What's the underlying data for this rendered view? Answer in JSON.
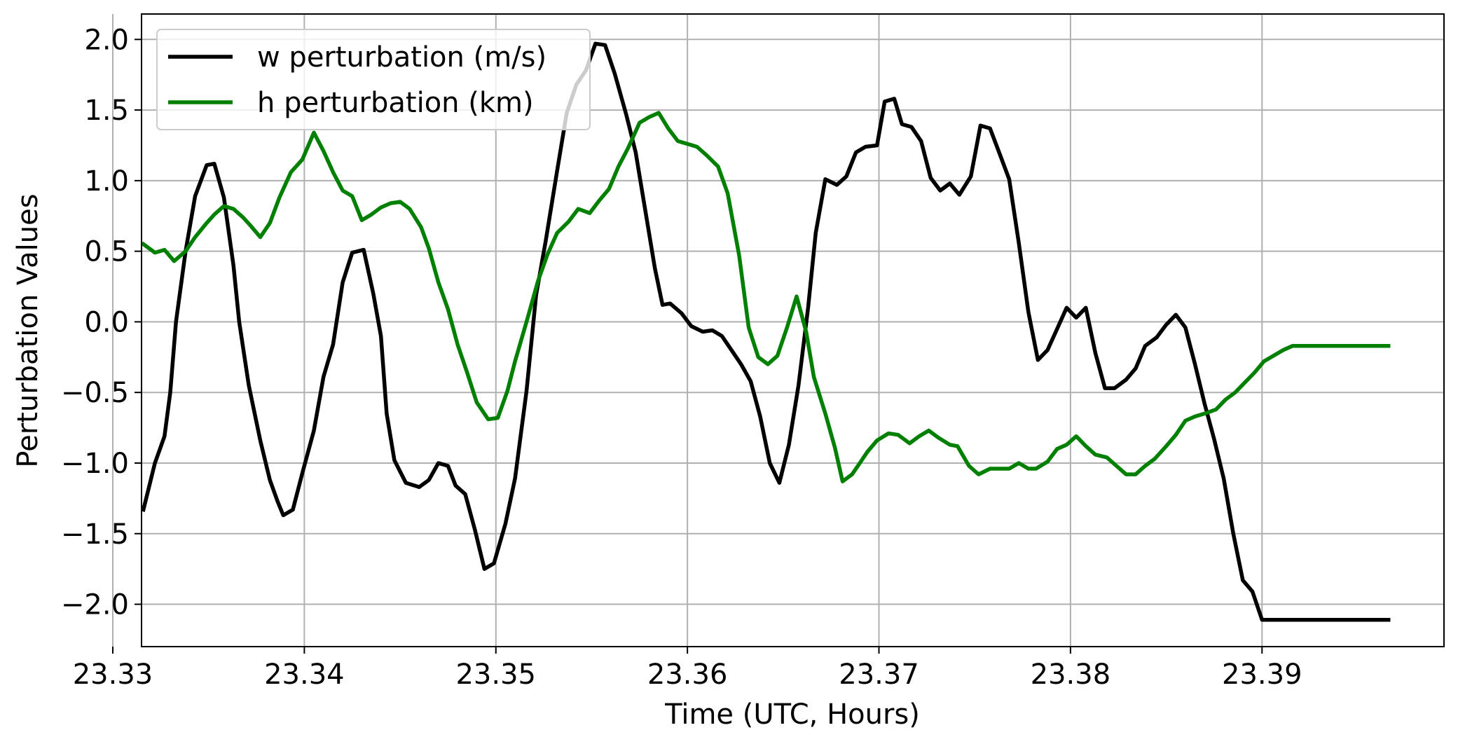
{
  "chart_data": {
    "type": "line",
    "title": "",
    "xlabel": "Time (UTC, Hours)",
    "ylabel": "Perturbation Values",
    "xlim": [
      23.3315,
      23.3995
    ],
    "ylim": [
      -2.3,
      2.18
    ],
    "grid": true,
    "legend_position": "top-left",
    "x_ticks": [
      23.33,
      23.34,
      23.35,
      23.36,
      23.37,
      23.38,
      23.39
    ],
    "x_tick_labels": [
      "23.33",
      "23.34",
      "23.35",
      "23.36",
      "23.37",
      "23.38",
      "23.39"
    ],
    "y_ticks": [
      2.0,
      1.5,
      1.0,
      0.5,
      0.0,
      -0.5,
      -1.0,
      -1.5,
      -2.0
    ],
    "y_tick_labels": [
      "2.0",
      "1.5",
      "1.0",
      "0.5",
      "0.0",
      "−0.5",
      "−1.0",
      "−1.5",
      "−2.0"
    ],
    "series": [
      {
        "name": "w perturbation (m/s)",
        "color": "#000000",
        "x": [
          23.3316,
          23.3322,
          23.3327,
          23.333,
          23.3333,
          23.3338,
          23.3343,
          23.3349,
          23.3353,
          23.3358,
          23.3363,
          23.3366,
          23.3371,
          23.3377,
          23.3382,
          23.3386,
          23.3389,
          23.3394,
          23.3399,
          23.3405,
          23.341,
          23.3415,
          23.342,
          23.3425,
          23.3431,
          23.3436,
          23.344,
          23.3443,
          23.3447,
          23.3453,
          23.346,
          23.3465,
          23.347,
          23.3475,
          23.3479,
          23.3484,
          23.3489,
          23.3494,
          23.3499,
          23.3505,
          23.351,
          23.3516,
          23.3521,
          23.3526,
          23.3532,
          23.3537,
          23.3542,
          23.3547,
          23.3552,
          23.3557,
          23.3562,
          23.3568,
          23.3573,
          23.3578,
          23.3583,
          23.3587,
          23.3591,
          23.3597,
          23.3602,
          23.3608,
          23.3613,
          23.3618,
          23.3623,
          23.3628,
          23.3633,
          23.3638,
          23.3643,
          23.3648,
          23.3653,
          23.3658,
          23.3663,
          23.3667,
          23.3672,
          23.3678,
          23.3683,
          23.3688,
          23.3693,
          23.3699,
          23.3703,
          23.3708,
          23.3712,
          23.3717,
          23.3722,
          23.3727,
          23.3732,
          23.3737,
          23.3742,
          23.3748,
          23.3753,
          23.3758,
          23.3763,
          23.3768,
          23.3773,
          23.3778,
          23.3783,
          23.3788,
          23.3793,
          23.3798,
          23.3803,
          23.3808,
          23.3813,
          23.3818,
          23.3823,
          23.3829,
          23.3834,
          23.3839,
          23.3845,
          23.385,
          23.3855,
          23.386,
          23.3865,
          23.387,
          23.3875,
          23.388,
          23.3885,
          23.389,
          23.3895,
          23.39,
          23.3905,
          23.3911,
          23.3916,
          23.3921,
          23.3926,
          23.3931,
          23.3936,
          23.3941,
          23.3946,
          23.3951,
          23.3956,
          23.3961,
          23.3966
        ],
        "y": [
          -1.33,
          -1.0,
          -0.81,
          -0.5,
          0.0,
          0.5,
          0.89,
          1.11,
          1.12,
          0.88,
          0.4,
          0.0,
          -0.45,
          -0.84,
          -1.12,
          -1.27,
          -1.37,
          -1.33,
          -1.07,
          -0.77,
          -0.39,
          -0.16,
          0.28,
          0.49,
          0.51,
          0.2,
          -0.1,
          -0.65,
          -0.98,
          -1.14,
          -1.17,
          -1.12,
          -1.0,
          -1.02,
          -1.16,
          -1.22,
          -1.47,
          -1.75,
          -1.71,
          -1.43,
          -1.11,
          -0.49,
          0.19,
          0.57,
          1.07,
          1.48,
          1.68,
          1.78,
          1.97,
          1.96,
          1.76,
          1.47,
          1.2,
          0.79,
          0.38,
          0.12,
          0.13,
          0.06,
          -0.03,
          -0.07,
          -0.06,
          -0.1,
          -0.2,
          -0.3,
          -0.42,
          -0.67,
          -1.0,
          -1.14,
          -0.87,
          -0.45,
          0.1,
          0.63,
          1.01,
          0.97,
          1.03,
          1.2,
          1.24,
          1.25,
          1.56,
          1.58,
          1.4,
          1.38,
          1.28,
          1.02,
          0.93,
          0.98,
          0.9,
          1.03,
          1.39,
          1.37,
          1.19,
          1.01,
          0.56,
          0.07,
          -0.27,
          -0.2,
          -0.05,
          0.1,
          0.03,
          0.1,
          -0.22,
          -0.47,
          -0.47,
          -0.41,
          -0.33,
          -0.17,
          -0.11,
          -0.02,
          0.05,
          -0.04,
          -0.3,
          -0.58,
          -0.83,
          -1.11,
          -1.5,
          -1.83,
          -1.91,
          -2.11,
          -2.11,
          -2.11,
          -2.11,
          -2.11,
          -2.11,
          -2.11,
          -2.11,
          -2.11,
          -2.11,
          -2.11,
          -2.11,
          -2.11,
          -2.11
        ]
      },
      {
        "name": "h perturbation (km)",
        "color": "#008000",
        "x": [
          23.3316,
          23.3322,
          23.3327,
          23.3332,
          23.3338,
          23.3343,
          23.3349,
          23.3353,
          23.3358,
          23.3363,
          23.3368,
          23.3372,
          23.3377,
          23.3382,
          23.3387,
          23.3393,
          23.3399,
          23.3405,
          23.341,
          23.3415,
          23.342,
          23.3425,
          23.343,
          23.3435,
          23.344,
          23.3445,
          23.345,
          23.3455,
          23.3461,
          23.3465,
          23.347,
          23.3475,
          23.348,
          23.3485,
          23.349,
          23.3496,
          23.3501,
          23.3506,
          23.351,
          23.3516,
          23.3522,
          23.3527,
          23.3532,
          23.3538,
          23.3543,
          23.3549,
          23.3554,
          23.3559,
          23.3564,
          23.3569,
          23.3575,
          23.358,
          23.3585,
          23.359,
          23.3595,
          23.36,
          23.3605,
          23.361,
          23.3616,
          23.3621,
          23.3627,
          23.3632,
          23.3637,
          23.3642,
          23.3647,
          23.3652,
          23.3657,
          23.3662,
          23.3666,
          23.3672,
          23.3677,
          23.3681,
          23.3686,
          23.369,
          23.3694,
          23.3699,
          23.3705,
          23.371,
          23.3716,
          23.3721,
          23.3726,
          23.3731,
          23.3737,
          23.3741,
          23.3747,
          23.3752,
          23.3758,
          23.3763,
          23.3768,
          23.3773,
          23.3778,
          23.3782,
          23.3788,
          23.3793,
          23.3798,
          23.3803,
          23.3808,
          23.3813,
          23.3819,
          23.3824,
          23.3829,
          23.3834,
          23.3839,
          23.3844,
          23.385,
          23.3855,
          23.386,
          23.3865,
          23.387,
          23.3876,
          23.3881,
          23.3886,
          23.3891,
          23.3896,
          23.3901,
          23.3906,
          23.3911,
          23.3916,
          23.3922,
          23.3927,
          23.3932,
          23.3937,
          23.3942,
          23.3947,
          23.3952,
          23.3957,
          23.3962,
          23.3966
        ],
        "y": [
          0.55,
          0.49,
          0.51,
          0.43,
          0.5,
          0.6,
          0.7,
          0.76,
          0.82,
          0.8,
          0.74,
          0.68,
          0.6,
          0.7,
          0.88,
          1.06,
          1.15,
          1.34,
          1.21,
          1.06,
          0.93,
          0.89,
          0.72,
          0.76,
          0.81,
          0.84,
          0.85,
          0.8,
          0.67,
          0.52,
          0.28,
          0.09,
          -0.16,
          -0.36,
          -0.57,
          -0.69,
          -0.68,
          -0.49,
          -0.28,
          0.0,
          0.29,
          0.48,
          0.63,
          0.71,
          0.8,
          0.77,
          0.86,
          0.94,
          1.1,
          1.23,
          1.41,
          1.45,
          1.48,
          1.37,
          1.28,
          1.26,
          1.24,
          1.18,
          1.1,
          0.91,
          0.47,
          -0.04,
          -0.25,
          -0.3,
          -0.24,
          -0.04,
          0.18,
          -0.07,
          -0.39,
          -0.65,
          -0.89,
          -1.13,
          -1.08,
          -1.0,
          -0.92,
          -0.84,
          -0.79,
          -0.8,
          -0.86,
          -0.81,
          -0.77,
          -0.82,
          -0.87,
          -0.88,
          -1.02,
          -1.08,
          -1.04,
          -1.04,
          -1.04,
          -1.0,
          -1.04,
          -1.04,
          -0.99,
          -0.9,
          -0.87,
          -0.81,
          -0.88,
          -0.94,
          -0.96,
          -1.02,
          -1.08,
          -1.08,
          -1.02,
          -0.97,
          -0.88,
          -0.8,
          -0.7,
          -0.67,
          -0.65,
          -0.62,
          -0.55,
          -0.5,
          -0.43,
          -0.36,
          -0.28,
          -0.24,
          -0.2,
          -0.17,
          -0.17,
          -0.17,
          -0.17,
          -0.17,
          -0.17,
          -0.17,
          -0.17,
          -0.17,
          -0.17,
          -0.17
        ]
      }
    ]
  }
}
